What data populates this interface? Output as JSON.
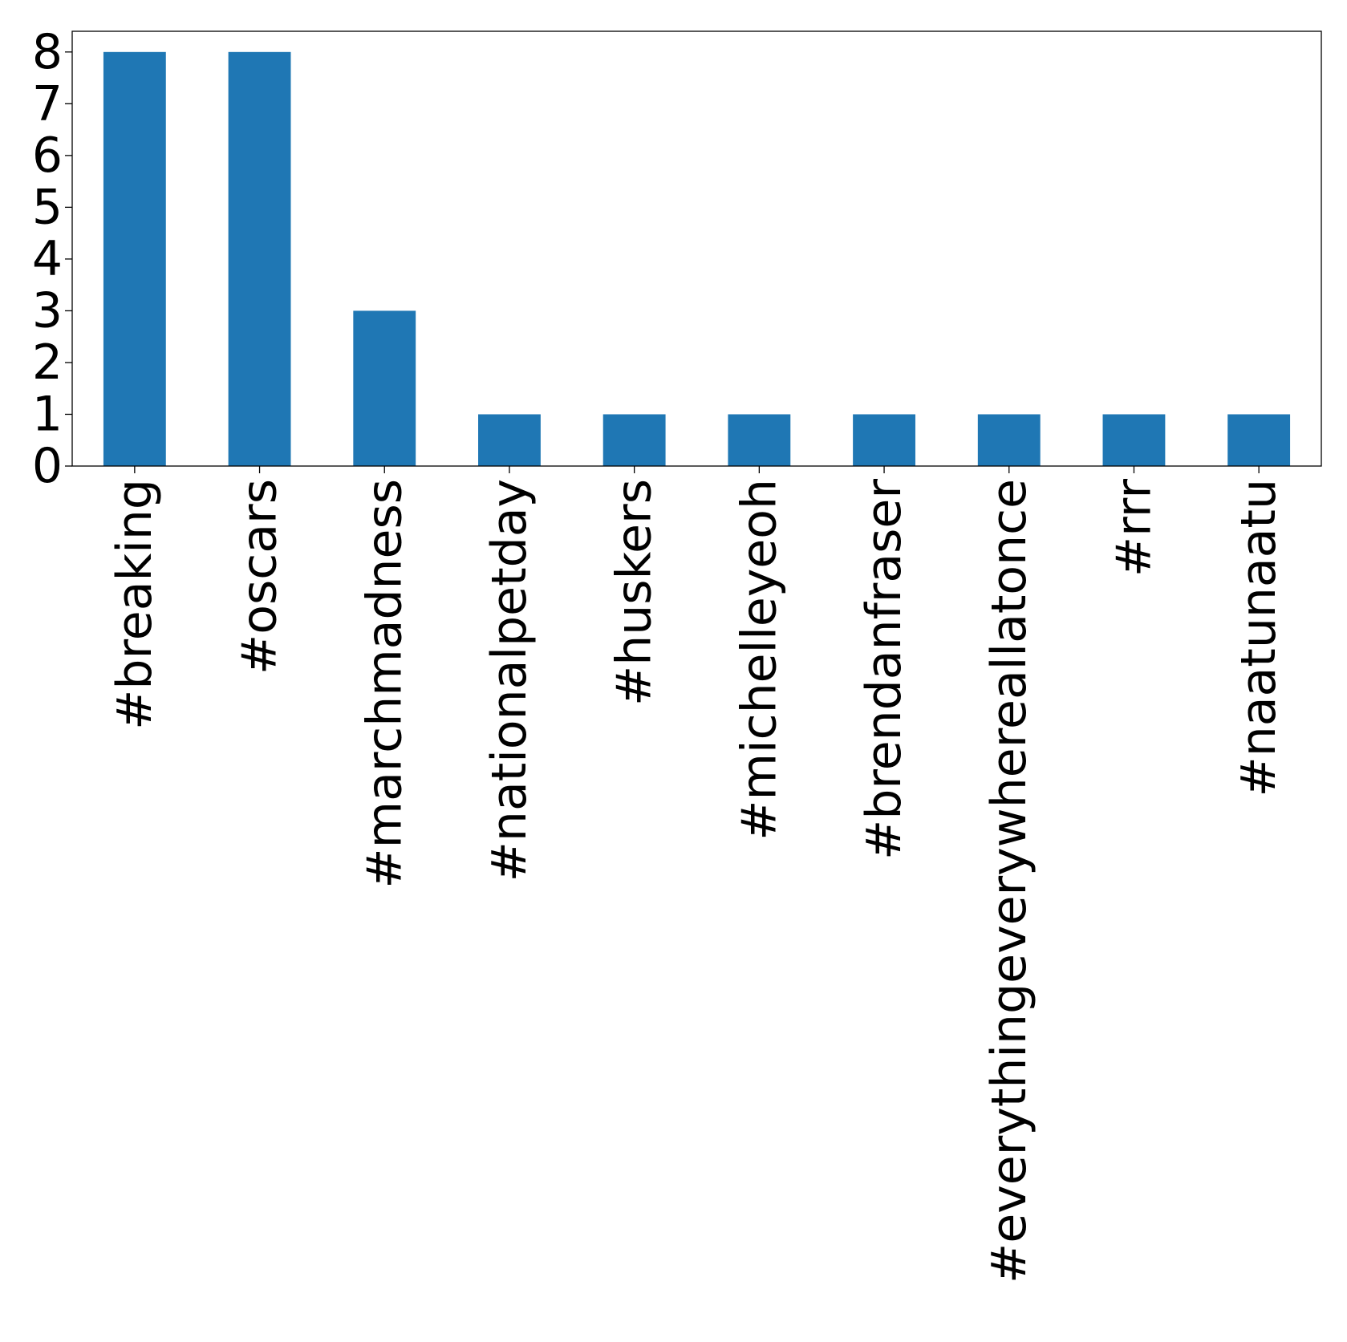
{
  "chart_data": {
    "type": "bar",
    "categories": [
      "#breaking",
      "#oscars",
      "#marchmadness",
      "#nationalpetday",
      "#huskers",
      "#michelleyeoh",
      "#brendanfraser",
      "#everythingeverywhereallatonce",
      "#rrr",
      "#naatunaatu"
    ],
    "values": [
      8,
      8,
      3,
      1,
      1,
      1,
      1,
      1,
      1,
      1
    ],
    "title": "",
    "xlabel": "",
    "ylabel": "",
    "ylim": [
      0,
      8.4
    ],
    "yticks": [
      0,
      1,
      2,
      3,
      4,
      5,
      6,
      7,
      8
    ],
    "grid": false,
    "bar_color": "#1f77b4"
  }
}
